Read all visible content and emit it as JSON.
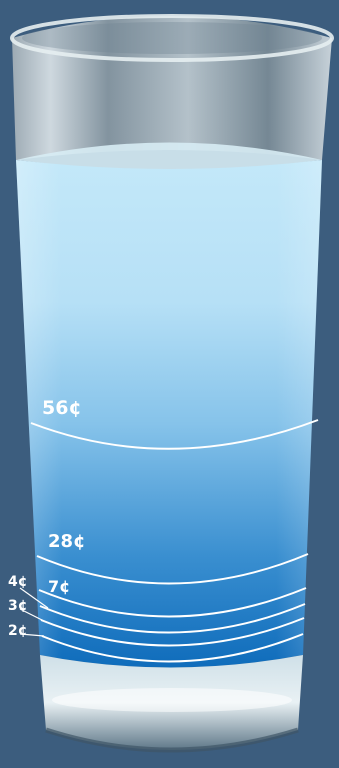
{
  "colors": {
    "background": "#3c5d7e",
    "water_top": "#bfe6f8",
    "water_mid": "#8cc8ec",
    "water_bottom": "#1772bf",
    "line": "#ffffff"
  },
  "levels": [
    {
      "label": "56¢",
      "value": 56
    },
    {
      "label": "28¢",
      "value": 28
    },
    {
      "label": "7¢",
      "value": 7
    },
    {
      "label": "4¢",
      "value": 4
    },
    {
      "label": "3¢",
      "value": 3
    },
    {
      "label": "2¢",
      "value": 2
    }
  ]
}
